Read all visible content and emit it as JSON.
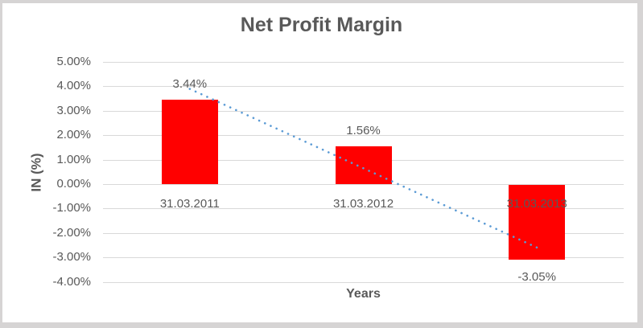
{
  "chart_data": {
    "type": "bar",
    "title": "Net Profit Margin",
    "xlabel": "Years",
    "ylabel": "IN (%)",
    "categories": [
      "31.03.2011",
      "31.03.2012",
      "31.03.2013"
    ],
    "values": [
      3.44,
      1.56,
      -3.05
    ],
    "value_labels": [
      "3.44%",
      "1.56%",
      "-3.05%"
    ],
    "y_ticks": [
      "5.00%",
      "4.00%",
      "3.00%",
      "2.00%",
      "1.00%",
      "0.00%",
      "-1.00%",
      "-2.00%",
      "-3.00%",
      "-4.00%"
    ],
    "ylim": [
      -4,
      5
    ],
    "grid": true,
    "legend": "none",
    "bar_color": "#FF0000",
    "trendline": {
      "type": "linear",
      "style": "dotted",
      "color": "#5B9BD5"
    }
  },
  "colors": {
    "text": "#595959",
    "gridline": "#D9D9D9",
    "frame": "#D6D4D4",
    "background": "#FFFFFF"
  }
}
